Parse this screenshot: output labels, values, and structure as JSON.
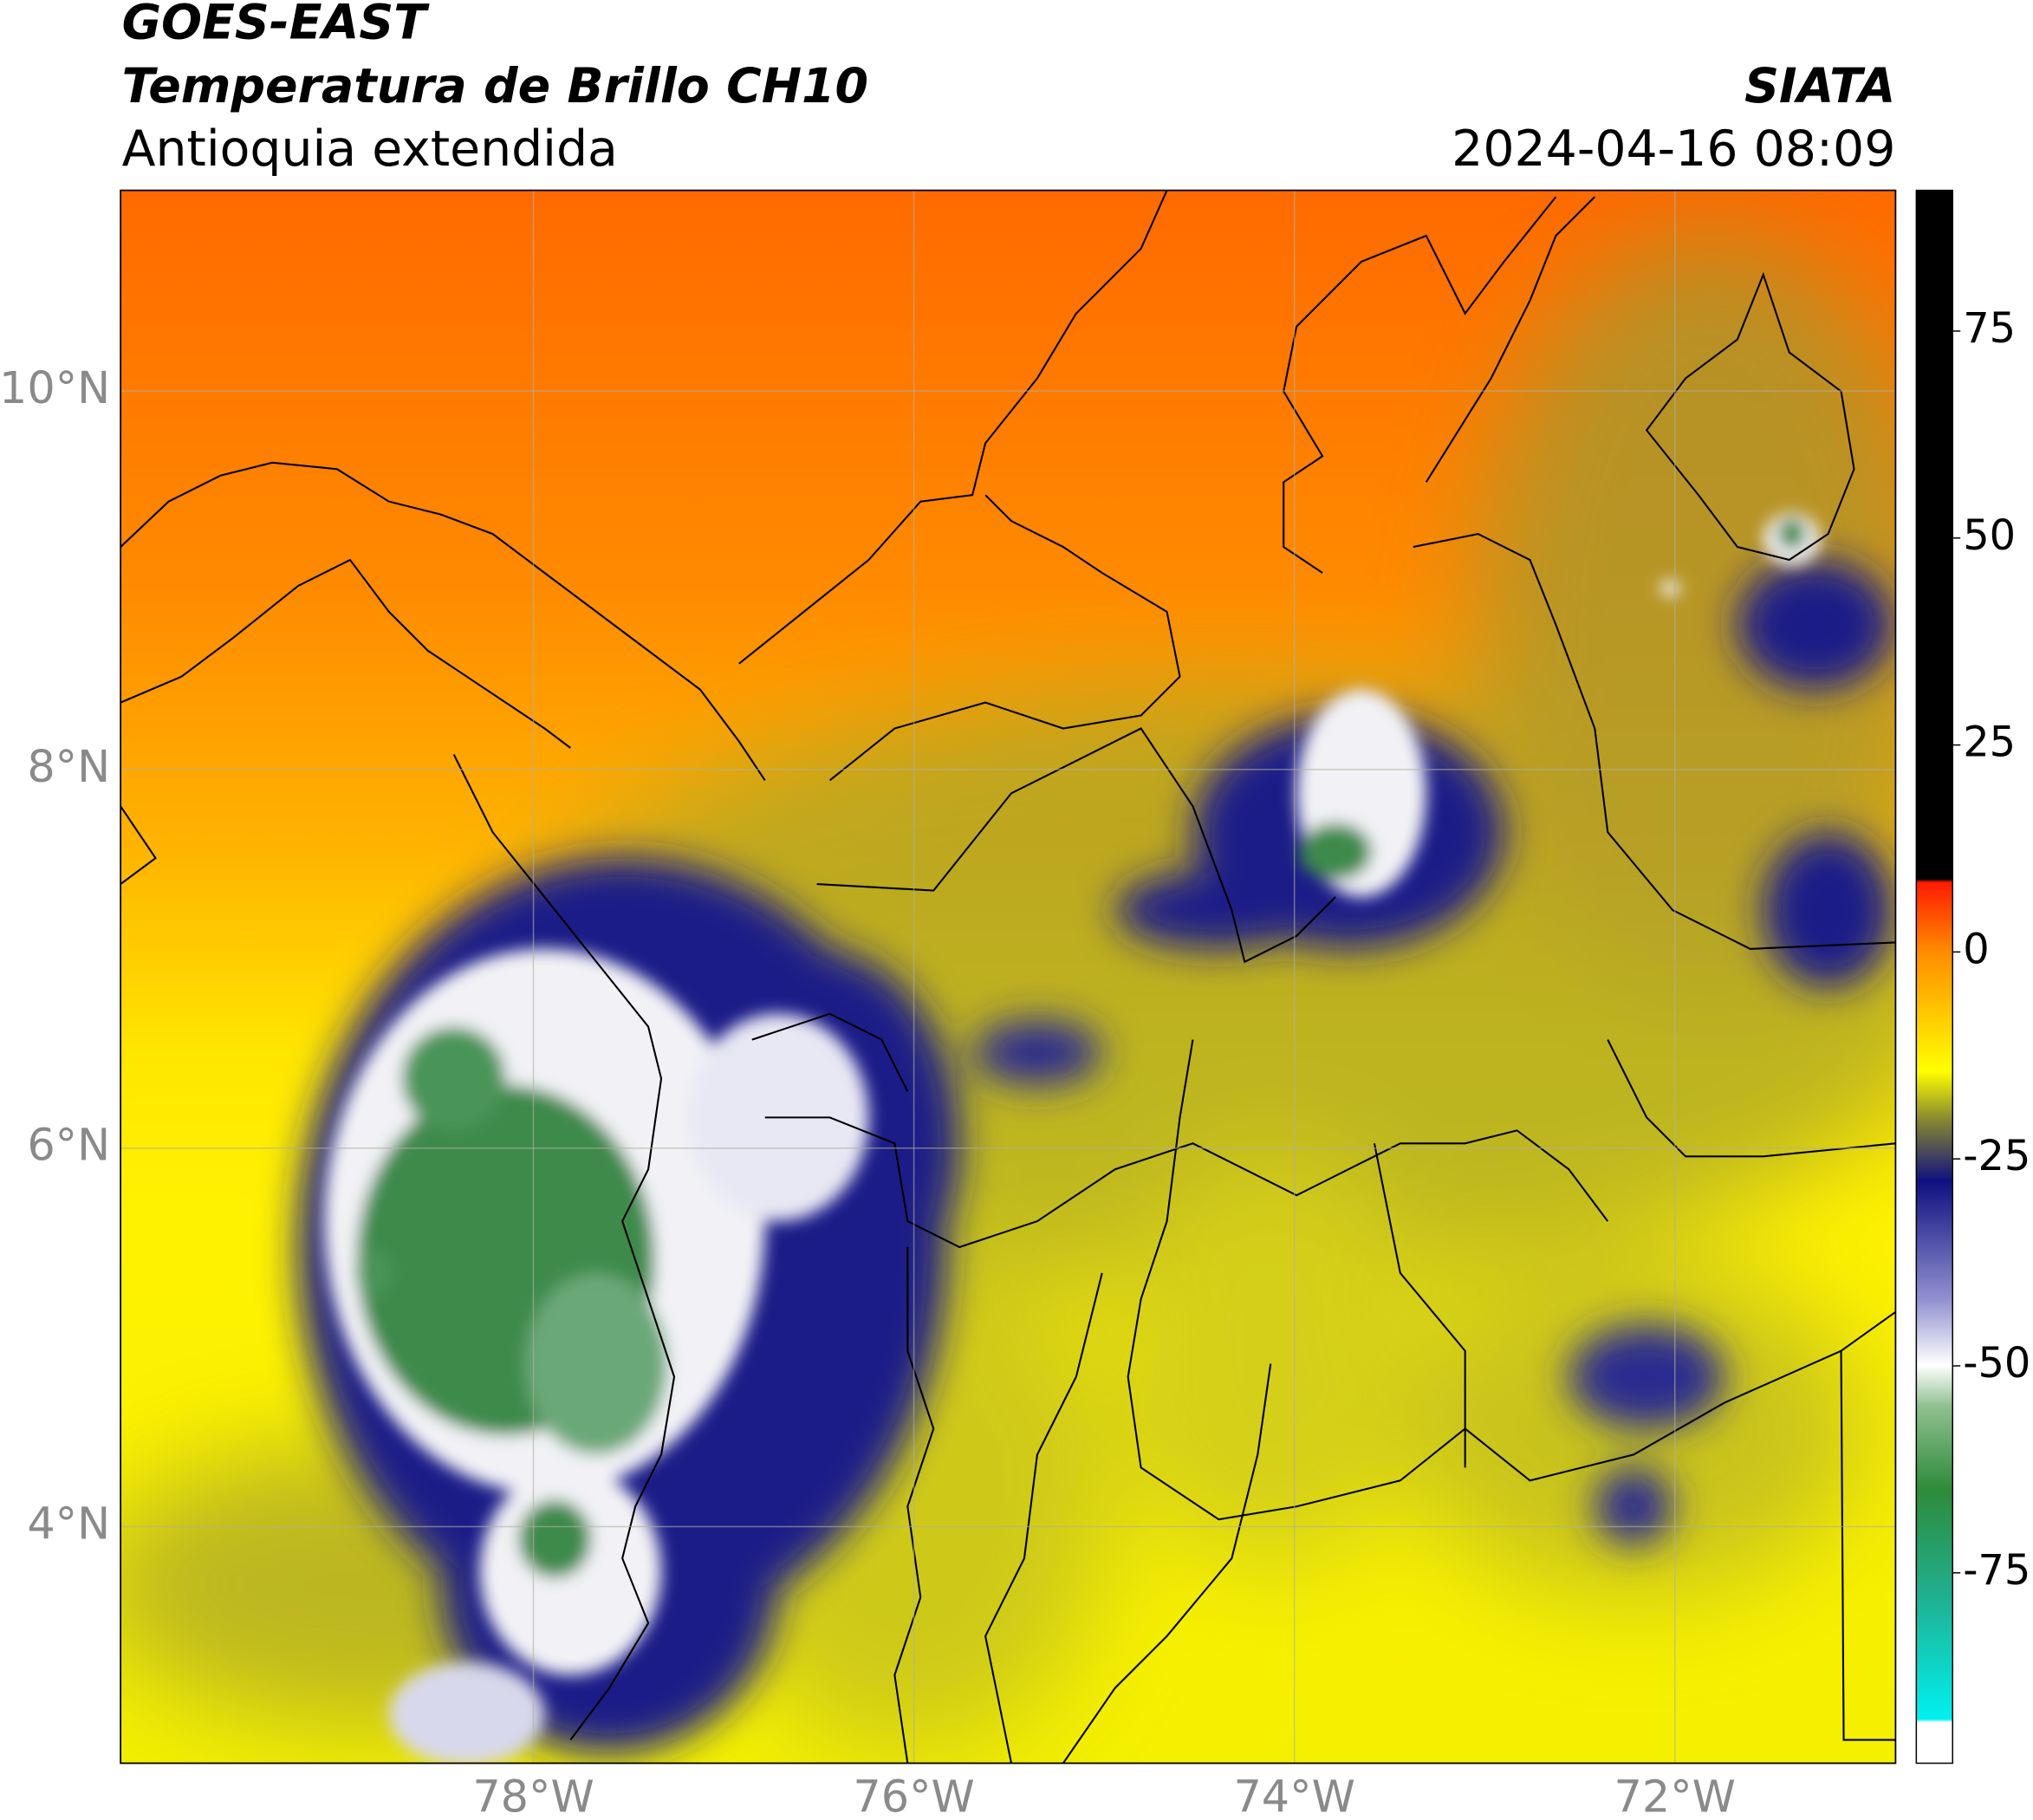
{
  "header": {
    "title": "GOES-EAST",
    "subtitle": "Temperatura de Brillo CH10",
    "region": "Antioquia extendida",
    "source": "SIATA",
    "datetime": "2024-04-16 08:09"
  },
  "map": {
    "lonlim": [
      -80.17,
      -70.84
    ],
    "latlim": [
      2.75,
      11.06
    ],
    "lonticks": [
      {
        "value": -78,
        "label": "78°W"
      },
      {
        "value": -76,
        "label": "76°W"
      },
      {
        "value": -74,
        "label": "74°W"
      },
      {
        "value": -72,
        "label": "72°W"
      }
    ],
    "latticks": [
      {
        "value": 10,
        "label": "10°N"
      },
      {
        "value": 8,
        "label": "8°N"
      },
      {
        "value": 6,
        "label": "6°N"
      },
      {
        "value": 4,
        "label": "4°N"
      }
    ],
    "grid": true
  },
  "colorbar": {
    "lim": [
      -98,
      92
    ],
    "ticks": [
      75,
      50,
      25,
      0,
      -25,
      -50,
      -75
    ]
  }
}
